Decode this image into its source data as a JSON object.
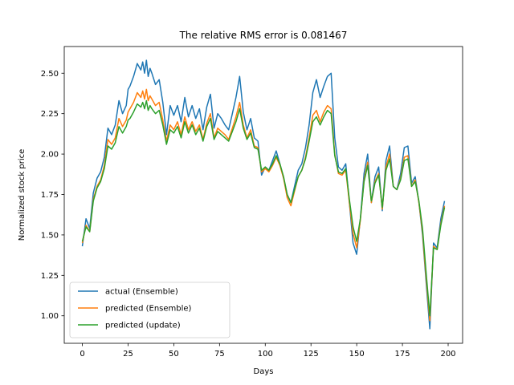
{
  "chart_data": {
    "type": "line",
    "title": "The relative RMS error is 0.081467",
    "xlabel": "Days",
    "ylabel": "Normalized stock price",
    "xlim": [
      -9.9,
      207.9
    ],
    "ylim": [
      0.83,
      2.665
    ],
    "xticks": [
      0,
      25,
      50,
      75,
      100,
      125,
      150,
      175,
      200
    ],
    "yticks": [
      1.0,
      1.25,
      1.5,
      1.75,
      2.0,
      2.25,
      2.5
    ],
    "ytick_labels": [
      "1.00",
      "1.25",
      "1.50",
      "1.75",
      "2.00",
      "2.25",
      "2.50"
    ],
    "grid": false,
    "legend_location": "lower-left",
    "colors": {
      "actual (Ensemble)": "#1f77b4",
      "predicted (Ensemble)": "#ff7f0e",
      "predicted (update)": "#2ca02c"
    },
    "series": [
      {
        "name": "actual (Ensemble)",
        "x": [
          0,
          2,
          4,
          6,
          8,
          10,
          12,
          14,
          16,
          18,
          20,
          22,
          24,
          25,
          26,
          28,
          30,
          32,
          33,
          34,
          35,
          36,
          37,
          38,
          40,
          42,
          44,
          46,
          48,
          50,
          52,
          54,
          56,
          58,
          60,
          62,
          64,
          66,
          68,
          70,
          72,
          74,
          76,
          78,
          80,
          82,
          84,
          86,
          88,
          90,
          92,
          94,
          96,
          98,
          100,
          102,
          104,
          106,
          108,
          110,
          112,
          114,
          116,
          118,
          120,
          122,
          124,
          126,
          128,
          130,
          132,
          134,
          136,
          138,
          140,
          142,
          144,
          146,
          148,
          150,
          152,
          154,
          156,
          158,
          160,
          162,
          164,
          166,
          168,
          170,
          172,
          174,
          176,
          178,
          180,
          182,
          184,
          186,
          187,
          188,
          190,
          192,
          194,
          196,
          198
        ],
        "y": [
          1.43,
          1.6,
          1.54,
          1.76,
          1.85,
          1.89,
          1.98,
          2.16,
          2.12,
          2.18,
          2.33,
          2.25,
          2.3,
          2.4,
          2.42,
          2.48,
          2.56,
          2.52,
          2.57,
          2.5,
          2.58,
          2.48,
          2.53,
          2.5,
          2.43,
          2.46,
          2.32,
          2.12,
          2.3,
          2.24,
          2.3,
          2.2,
          2.35,
          2.23,
          2.3,
          2.22,
          2.28,
          2.15,
          2.29,
          2.37,
          2.16,
          2.25,
          2.22,
          2.18,
          2.15,
          2.25,
          2.35,
          2.48,
          2.26,
          2.15,
          2.22,
          2.1,
          2.08,
          1.87,
          1.92,
          1.9,
          1.96,
          2.02,
          1.94,
          1.85,
          1.75,
          1.7,
          1.8,
          1.9,
          1.94,
          2.04,
          2.18,
          2.38,
          2.46,
          2.35,
          2.42,
          2.48,
          2.5,
          2.1,
          1.92,
          1.9,
          1.94,
          1.7,
          1.45,
          1.38,
          1.6,
          1.88,
          2.0,
          1.7,
          1.86,
          1.92,
          1.65,
          1.96,
          2.05,
          1.8,
          1.78,
          1.88,
          2.04,
          2.05,
          1.82,
          1.86,
          1.7,
          1.5,
          1.35,
          1.2,
          0.92,
          1.45,
          1.42,
          1.6,
          1.71
        ]
      },
      {
        "name": "predicted (Ensemble)",
        "x": [
          0,
          2,
          4,
          6,
          8,
          10,
          12,
          14,
          16,
          18,
          20,
          22,
          24,
          25,
          26,
          28,
          30,
          32,
          33,
          34,
          35,
          36,
          37,
          38,
          40,
          42,
          44,
          46,
          48,
          50,
          52,
          54,
          56,
          58,
          60,
          62,
          64,
          66,
          68,
          70,
          72,
          74,
          76,
          78,
          80,
          82,
          84,
          86,
          88,
          90,
          92,
          94,
          96,
          98,
          100,
          102,
          104,
          106,
          108,
          110,
          112,
          114,
          116,
          118,
          120,
          122,
          124,
          126,
          128,
          130,
          132,
          134,
          136,
          138,
          140,
          142,
          144,
          146,
          148,
          150,
          152,
          154,
          156,
          158,
          160,
          162,
          164,
          166,
          168,
          170,
          172,
          174,
          176,
          178,
          180,
          182,
          184,
          186,
          187,
          188,
          190,
          192,
          194,
          196,
          198
        ],
        "y": [
          1.45,
          1.56,
          1.52,
          1.72,
          1.8,
          1.84,
          1.93,
          2.09,
          2.06,
          2.1,
          2.22,
          2.17,
          2.21,
          2.26,
          2.28,
          2.32,
          2.38,
          2.35,
          2.39,
          2.34,
          2.4,
          2.33,
          2.36,
          2.34,
          2.3,
          2.32,
          2.21,
          2.08,
          2.18,
          2.15,
          2.2,
          2.12,
          2.23,
          2.15,
          2.2,
          2.14,
          2.18,
          2.09,
          2.19,
          2.25,
          2.1,
          2.16,
          2.14,
          2.12,
          2.09,
          2.16,
          2.23,
          2.32,
          2.18,
          2.1,
          2.15,
          2.05,
          2.04,
          1.89,
          1.91,
          1.89,
          1.93,
          1.98,
          1.93,
          1.85,
          1.73,
          1.68,
          1.77,
          1.86,
          1.9,
          1.98,
          2.1,
          2.24,
          2.27,
          2.2,
          2.26,
          2.3,
          2.28,
          2.0,
          1.88,
          1.87,
          1.9,
          1.7,
          1.51,
          1.42,
          1.59,
          1.84,
          1.95,
          1.7,
          1.83,
          1.88,
          1.66,
          1.92,
          2.0,
          1.8,
          1.78,
          1.85,
          1.98,
          1.99,
          1.8,
          1.84,
          1.7,
          1.52,
          1.37,
          1.23,
          0.97,
          1.43,
          1.41,
          1.57,
          1.68
        ]
      },
      {
        "name": "predicted (update)",
        "x": [
          0,
          2,
          4,
          6,
          8,
          10,
          12,
          14,
          16,
          18,
          20,
          22,
          24,
          25,
          26,
          28,
          30,
          32,
          33,
          34,
          35,
          36,
          37,
          38,
          40,
          42,
          44,
          46,
          48,
          50,
          52,
          54,
          56,
          58,
          60,
          62,
          64,
          66,
          68,
          70,
          72,
          74,
          76,
          78,
          80,
          82,
          84,
          86,
          88,
          90,
          92,
          94,
          96,
          98,
          100,
          102,
          104,
          106,
          108,
          110,
          112,
          114,
          116,
          118,
          120,
          122,
          124,
          126,
          128,
          130,
          132,
          134,
          136,
          138,
          140,
          142,
          144,
          146,
          148,
          150,
          152,
          154,
          156,
          158,
          160,
          162,
          164,
          166,
          168,
          170,
          172,
          174,
          176,
          178,
          180,
          182,
          184,
          186,
          187,
          188,
          190,
          192,
          194,
          196,
          198
        ],
        "y": [
          1.46,
          1.55,
          1.52,
          1.71,
          1.79,
          1.83,
          1.91,
          2.05,
          2.03,
          2.07,
          2.17,
          2.13,
          2.17,
          2.21,
          2.22,
          2.26,
          2.31,
          2.29,
          2.32,
          2.28,
          2.33,
          2.27,
          2.3,
          2.28,
          2.25,
          2.27,
          2.18,
          2.06,
          2.15,
          2.13,
          2.17,
          2.1,
          2.2,
          2.13,
          2.18,
          2.12,
          2.16,
          2.08,
          2.17,
          2.22,
          2.09,
          2.14,
          2.12,
          2.1,
          2.08,
          2.14,
          2.2,
          2.28,
          2.16,
          2.09,
          2.13,
          2.04,
          2.03,
          1.9,
          1.92,
          1.9,
          1.94,
          1.99,
          1.94,
          1.86,
          1.75,
          1.7,
          1.78,
          1.86,
          1.9,
          1.97,
          2.08,
          2.2,
          2.23,
          2.18,
          2.23,
          2.27,
          2.25,
          1.99,
          1.89,
          1.88,
          1.91,
          1.72,
          1.55,
          1.46,
          1.6,
          1.83,
          1.93,
          1.71,
          1.82,
          1.87,
          1.67,
          1.9,
          1.97,
          1.8,
          1.78,
          1.84,
          1.96,
          1.97,
          1.8,
          1.83,
          1.71,
          1.54,
          1.4,
          1.26,
          1.0,
          1.42,
          1.41,
          1.56,
          1.67
        ]
      }
    ]
  }
}
